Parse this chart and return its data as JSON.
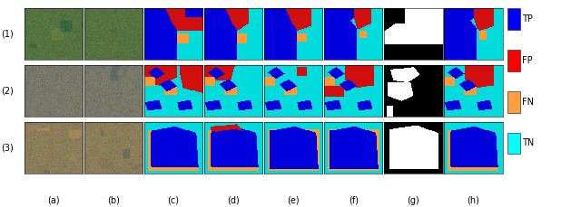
{
  "fig_width": 6.4,
  "fig_height": 2.29,
  "dpi": 100,
  "n_rows": 3,
  "n_cols": 8,
  "row_labels": [
    "(1)",
    "(2)",
    "(3)"
  ],
  "col_labels": [
    "(a)",
    "(b)",
    "(c)",
    "(d)",
    "(e)",
    "(f)",
    "(g)",
    "(h)"
  ],
  "legend_items": [
    {
      "label": "TP",
      "color": "#0000FF"
    },
    {
      "label": "FP",
      "color": "#FF0000"
    },
    {
      "label": "FN",
      "color": "#FFA040"
    },
    {
      "label": "TN",
      "color": "#00FFFF"
    }
  ],
  "label_fontsize": 7,
  "legend_fontsize": 7
}
